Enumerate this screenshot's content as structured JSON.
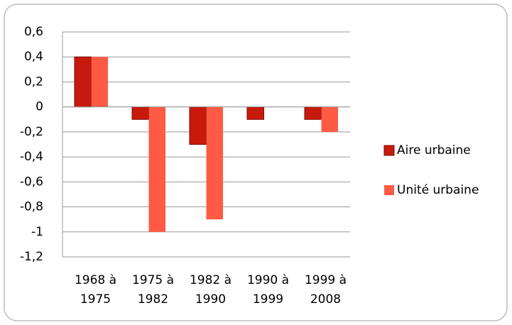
{
  "chart_data": {
    "type": "bar",
    "categories": [
      "1968 à 1975",
      "1975 à 1982",
      "1982 à 1990",
      "1990 à 1999",
      "1999 à 2008"
    ],
    "series": [
      {
        "name": "Aire urbaine",
        "color": "#c81a0c",
        "values": [
          0.4,
          -0.1,
          -0.3,
          -0.1,
          -0.1
        ]
      },
      {
        "name": "Unité urbaine",
        "color": "#ff5a44",
        "values": [
          0.4,
          -1,
          -0.9,
          0,
          -0.2
        ]
      }
    ],
    "ylim": [
      -1.2,
      0.6
    ],
    "yticks": [
      {
        "value": -1.2,
        "label": "-1,2"
      },
      -1,
      {
        "value": -0.8,
        "label": "-0,8"
      },
      {
        "value": -0.6,
        "label": "-0,6"
      },
      {
        "value": -0.4,
        "label": "-0,4"
      },
      {
        "value": -0.2,
        "label": "-0,2"
      },
      0,
      {
        "value": 0.2,
        "label": "0,2"
      },
      {
        "value": 0.4,
        "label": "0,4"
      },
      {
        "value": 0.6,
        "label": "0,6"
      }
    ],
    "grid": true,
    "legend": "right"
  }
}
